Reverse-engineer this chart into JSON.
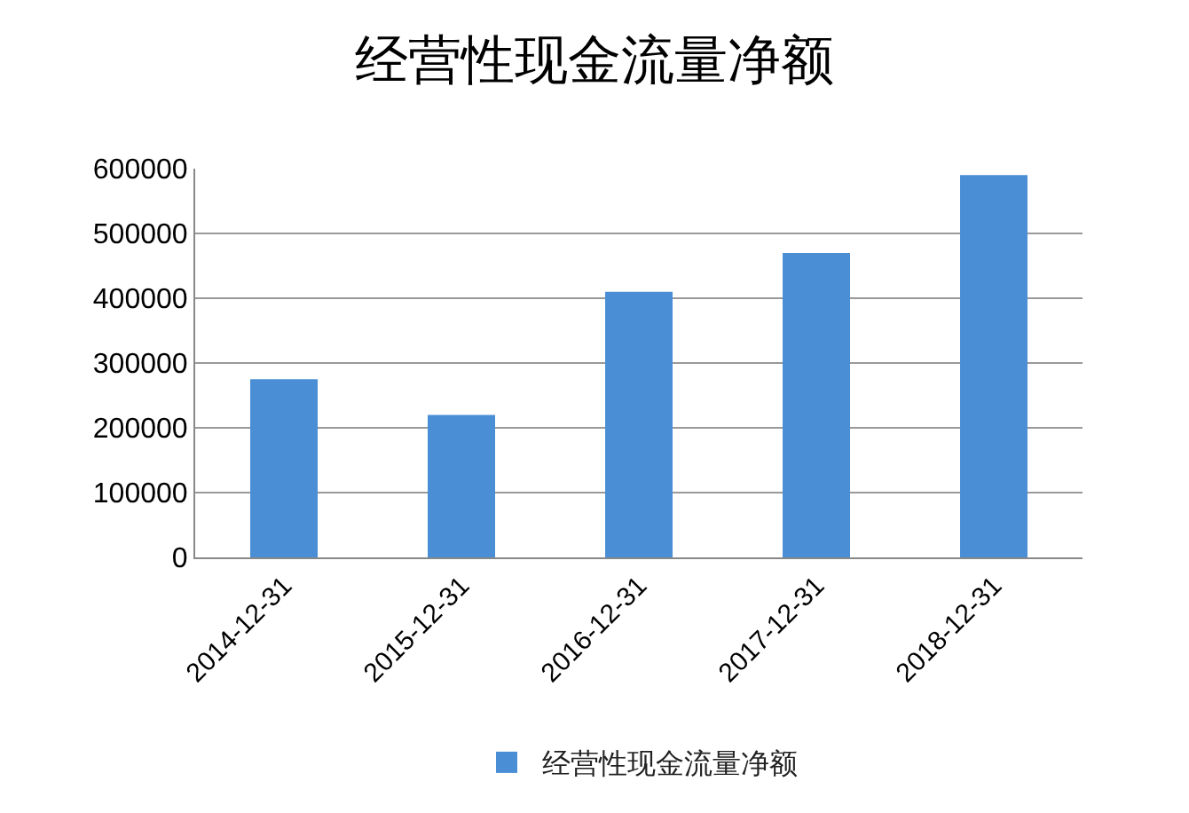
{
  "chart_data": {
    "type": "bar",
    "title": "经营性现金流量净额",
    "categories": [
      "2014-12-31",
      "2015-12-31",
      "2016-12-31",
      "2017-12-31",
      "2018-12-31"
    ],
    "series": [
      {
        "name": "经营性现金流量净额",
        "color": "#4a8fd6",
        "values": [
          275000,
          220000,
          410000,
          470000,
          590000
        ]
      }
    ],
    "ylim": [
      0,
      600000
    ],
    "yticks": [
      0,
      100000,
      200000,
      300000,
      400000,
      500000,
      600000
    ],
    "grid": "y",
    "legend": "bottom"
  }
}
